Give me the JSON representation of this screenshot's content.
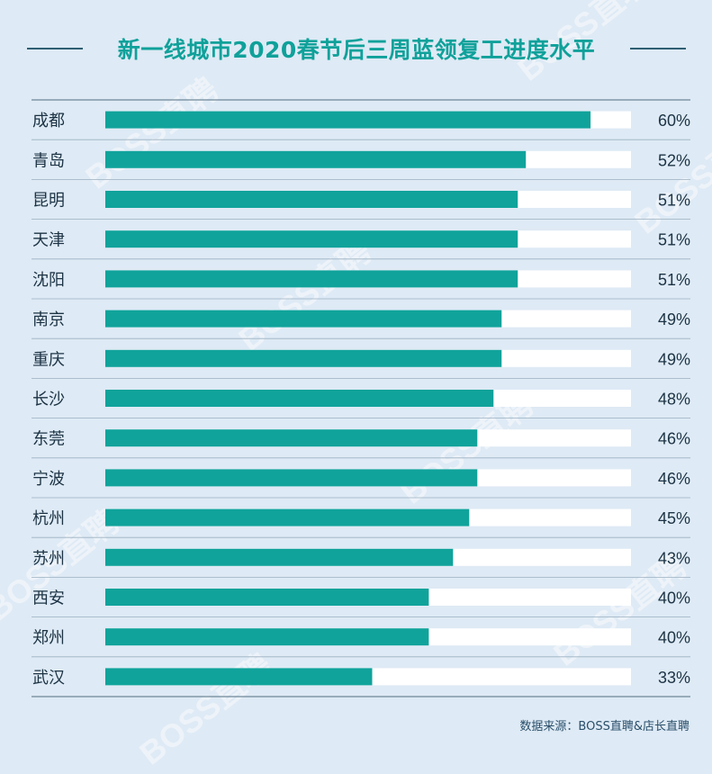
{
  "title": "新一线城市2020春节后三周蓝领复工进度水平",
  "source": "数据来源：BOSS直聘&店长直聘",
  "watermark": "BOSS直聘",
  "colors": {
    "bar": "#10a39b",
    "track": "#ffffff",
    "background": "#deeaf5",
    "title": "#0fa19a",
    "text": "#1c3344",
    "divider": "#9bb0c0"
  },
  "chart_data": {
    "type": "bar",
    "orientation": "horizontal",
    "title": "新一线城市2020春节后三周蓝领复工进度水平",
    "xlabel": "",
    "ylabel": "",
    "xlim": [
      0,
      65
    ],
    "grid": false,
    "categories": [
      "成都",
      "青岛",
      "昆明",
      "天津",
      "沈阳",
      "南京",
      "重庆",
      "长沙",
      "东莞",
      "宁波",
      "杭州",
      "苏州",
      "西安",
      "郑州",
      "武汉"
    ],
    "values": [
      60,
      52,
      51,
      51,
      51,
      49,
      49,
      48,
      46,
      46,
      45,
      43,
      40,
      40,
      33
    ],
    "value_labels": [
      "60%",
      "52%",
      "51%",
      "51%",
      "51%",
      "49%",
      "49%",
      "48%",
      "46%",
      "46%",
      "45%",
      "43%",
      "40%",
      "40%",
      "33%"
    ]
  }
}
